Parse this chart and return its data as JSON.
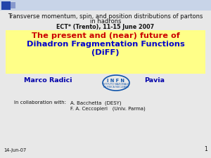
{
  "title_line1": "Transverse momentum, spin, and position distributions of partons",
  "title_line2": "in hadrons",
  "subtitle": "ECT* (Trento), 11-15 June 2007",
  "main_line1": "The present and (near) future of",
  "main_line2": "Dihadron Fragmentation Functions",
  "main_line3": "(DiFF)",
  "author": "Marco Radici",
  "affiliation": "Pavia",
  "collab_label": "In collaboration with:",
  "collab1": "A. Bacchetta  (DESY)",
  "collab2": "F. A. Ceccopieri   (Univ. Parma)",
  "date": "14-Jun-07",
  "page": "1",
  "bg_color": "#e8e8e8",
  "title_color": "#111111",
  "subtitle_color": "#111111",
  "main_bg": "#ffff88",
  "main_color_red": "#cc0000",
  "main_color_blue": "#0000cc",
  "author_color": "#0000aa",
  "affil_color": "#0000aa",
  "infn_color": "#1155aa",
  "corner_bar_color": "#aabbdd",
  "corner_sq1": "#2244aa",
  "corner_sq2": "#8899cc"
}
